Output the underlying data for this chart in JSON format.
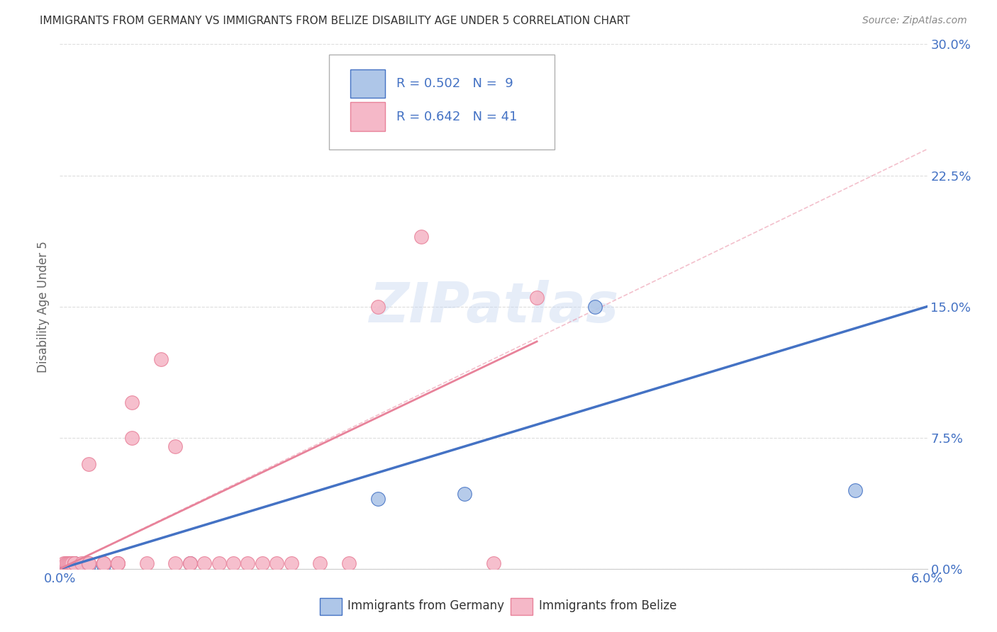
{
  "title": "IMMIGRANTS FROM GERMANY VS IMMIGRANTS FROM BELIZE DISABILITY AGE UNDER 5 CORRELATION CHART",
  "source": "Source: ZipAtlas.com",
  "ylabel": "Disability Age Under 5",
  "xlim": [
    0.0,
    0.06
  ],
  "ylim": [
    0.0,
    0.3
  ],
  "xticks": [
    0.0,
    0.01,
    0.02,
    0.03,
    0.04,
    0.05,
    0.06
  ],
  "yticks": [
    0.0,
    0.075,
    0.15,
    0.225,
    0.3
  ],
  "ytick_labels": [
    "0.0%",
    "7.5%",
    "15.0%",
    "22.5%",
    "30.0%"
  ],
  "xtick_labels": [
    "0.0%",
    "",
    "",
    "",
    "",
    "",
    "6.0%"
  ],
  "germany_R": 0.502,
  "germany_N": 9,
  "belize_R": 0.642,
  "belize_N": 41,
  "germany_color": "#aec6e8",
  "belize_color": "#f5b8c8",
  "germany_line_color": "#4472c4",
  "belize_line_color": "#e8829a",
  "germany_scatter_x": [
    0.0005,
    0.001,
    0.002,
    0.003,
    0.009,
    0.022,
    0.028,
    0.037,
    0.055
  ],
  "germany_scatter_y": [
    0.002,
    0.003,
    0.002,
    0.002,
    0.003,
    0.04,
    0.043,
    0.15,
    0.045
  ],
  "belize_scatter_x": [
    0.0003,
    0.0004,
    0.0005,
    0.0006,
    0.0007,
    0.0008,
    0.001,
    0.001,
    0.001,
    0.0015,
    0.002,
    0.002,
    0.002,
    0.003,
    0.003,
    0.003,
    0.003,
    0.004,
    0.004,
    0.004,
    0.005,
    0.005,
    0.006,
    0.007,
    0.008,
    0.008,
    0.009,
    0.009,
    0.01,
    0.011,
    0.012,
    0.013,
    0.014,
    0.015,
    0.016,
    0.018,
    0.02,
    0.022,
    0.025,
    0.03,
    0.033
  ],
  "belize_scatter_y": [
    0.003,
    0.003,
    0.003,
    0.003,
    0.003,
    0.003,
    0.003,
    0.003,
    0.003,
    0.003,
    0.003,
    0.06,
    0.003,
    0.003,
    0.003,
    0.003,
    0.003,
    0.003,
    0.003,
    0.003,
    0.075,
    0.095,
    0.003,
    0.12,
    0.003,
    0.07,
    0.003,
    0.003,
    0.003,
    0.003,
    0.003,
    0.003,
    0.003,
    0.003,
    0.003,
    0.003,
    0.003,
    0.15,
    0.19,
    0.003,
    0.155
  ],
  "legend_label_germany": "Immigrants from Germany",
  "legend_label_belize": "Immigrants from Belize",
  "watermark": "ZIPatlas",
  "background_color": "#ffffff",
  "grid_color": "#dddddd"
}
